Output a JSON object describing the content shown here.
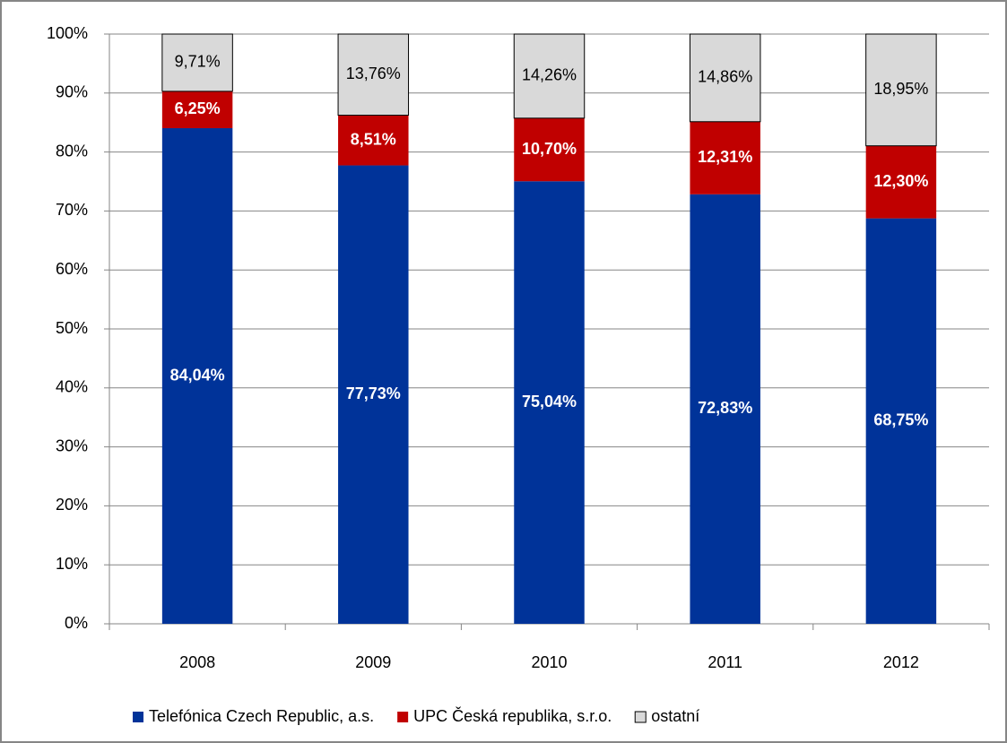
{
  "chart_data": {
    "type": "stacked_bar",
    "categories": [
      "2008",
      "2009",
      "2010",
      "2011",
      "2012"
    ],
    "series": [
      {
        "name": "Telefónica Czech Republic, a.s.",
        "color": "#003399",
        "values": [
          84.04,
          77.73,
          75.04,
          72.83,
          68.75
        ],
        "value_labels": [
          "84,04%",
          "77,73%",
          "75,04%",
          "72,83%",
          "68,75%"
        ]
      },
      {
        "name": "UPC Česká republika, s.r.o.",
        "color": "#c00000",
        "values": [
          6.25,
          8.51,
          10.7,
          12.31,
          12.3
        ],
        "value_labels": [
          "6,25%",
          "8,51%",
          "10,70%",
          "12,31%",
          "12,30%"
        ]
      },
      {
        "name": "ostatní",
        "color": "#d9d9d9",
        "values": [
          9.71,
          13.76,
          14.26,
          14.86,
          18.95
        ],
        "value_labels": [
          "9,71%",
          "13,76%",
          "14,26%",
          "14,86%",
          "18,95%"
        ]
      }
    ],
    "ylim": [
      0,
      100
    ],
    "yticks": [
      {
        "value": 0,
        "label": "0%"
      },
      {
        "value": 10,
        "label": "10%"
      },
      {
        "value": 20,
        "label": "20%"
      },
      {
        "value": 30,
        "label": "30%"
      },
      {
        "value": 40,
        "label": "40%"
      },
      {
        "value": 50,
        "label": "50%"
      },
      {
        "value": 60,
        "label": "60%"
      },
      {
        "value": 70,
        "label": "70%"
      },
      {
        "value": 80,
        "label": "80%"
      },
      {
        "value": 90,
        "label": "90%"
      },
      {
        "value": 100,
        "label": "100%"
      }
    ],
    "grid": true,
    "legend": "bottom"
  }
}
